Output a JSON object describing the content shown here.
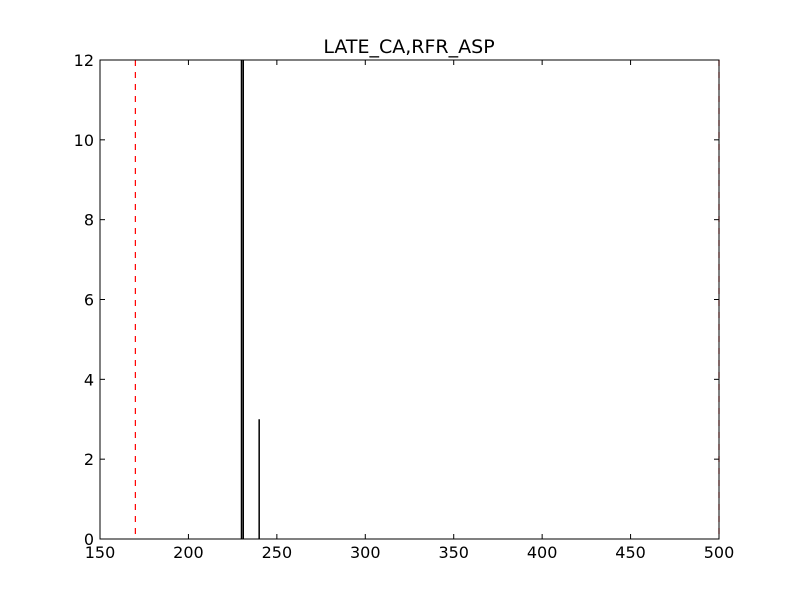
{
  "chart_data": {
    "type": "bar",
    "title": "LATE_CA,RFR_ASP",
    "xlabel": "",
    "ylabel": "",
    "xlim": [
      150,
      500
    ],
    "ylim": [
      0,
      12
    ],
    "xticks": [
      150,
      200,
      250,
      300,
      350,
      400,
      450,
      500
    ],
    "yticks": [
      0,
      2,
      4,
      6,
      8,
      10,
      12
    ],
    "grid": false,
    "legend": null,
    "bars": [
      {
        "x": 230,
        "value": 12
      },
      {
        "x": 231,
        "value": 12
      },
      {
        "x": 240,
        "value": 3
      }
    ],
    "reference_lines": [
      {
        "x": 170,
        "style": "dashed",
        "color": "#ff0000"
      },
      {
        "x": 500,
        "style": "dashed",
        "color": "#ff0000"
      }
    ],
    "bar_color": "#000000",
    "axis_color": "#000000"
  }
}
